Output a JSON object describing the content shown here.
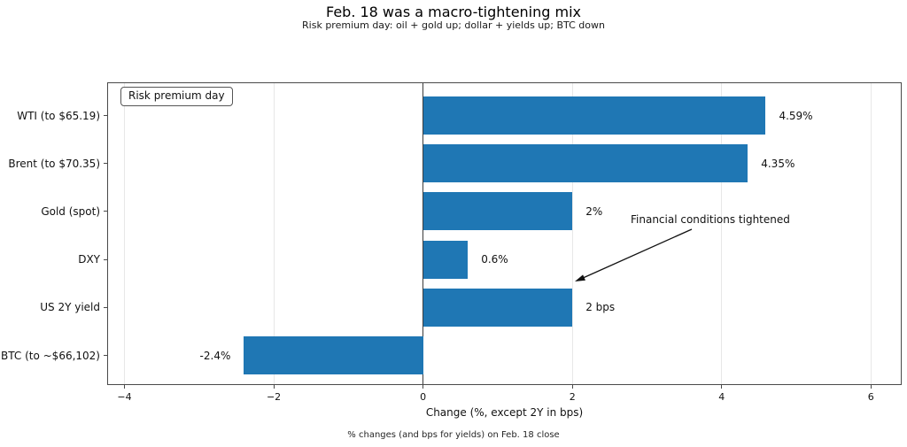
{
  "chart_data": {
    "type": "bar",
    "orientation": "horizontal",
    "title": "Feb. 18 was a macro-tightening mix",
    "subtitle": "Risk premium day: oil + gold up; dollar + yields up; BTC down",
    "categories": [
      "WTI (to $65.19)",
      "Brent (to $70.35)",
      "Gold (spot)",
      "DXY",
      "US 2Y yield",
      "BTC (to ~$66,102)"
    ],
    "values": [
      4.59,
      4.35,
      2,
      0.6,
      2,
      -2.4
    ],
    "value_labels": [
      "4.59%",
      "4.35%",
      "2%",
      "0.6%",
      "2 bps",
      "-2.4%"
    ],
    "xlabel": "Change (%, except 2Y in bps)",
    "x_ticks": [
      -4,
      -2,
      0,
      2,
      4,
      6
    ],
    "xlim": [
      -4.22,
      6.4
    ],
    "grid": "vertical light gridlines at ticks, dark line at zero",
    "legend": "Risk premium day",
    "legend_position": "upper left",
    "annotations": [
      {
        "text": "Financial conditions tightened",
        "arrow_points_to": {
          "x": 2.0,
          "between_rows": [
            "DXY",
            "US 2Y yield"
          ]
        }
      }
    ],
    "caption": "% changes (and bps for yields) on Feb. 18 close",
    "bar_color": "#1f77b4",
    "zero_line_color": "#3d3d3d",
    "grid_color": "#e7e7e7"
  }
}
